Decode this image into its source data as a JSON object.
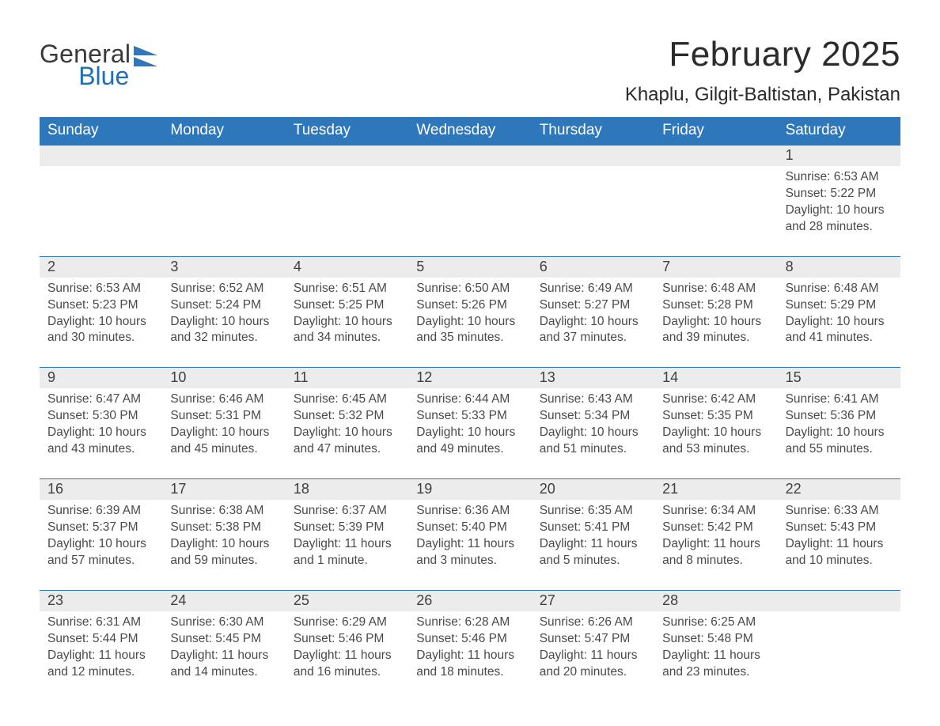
{
  "colors": {
    "accent": "#2f77bb",
    "gray_band": "#ececec",
    "text": "#333333",
    "logo_blue": "#1f6fb2",
    "background": "#ffffff"
  },
  "logo": {
    "line1": "General",
    "line2": "Blue"
  },
  "header": {
    "month_title": "February 2025",
    "location": "Khaplu, Gilgit-Baltistan, Pakistan"
  },
  "weekdays": [
    "Sunday",
    "Monday",
    "Tuesday",
    "Wednesday",
    "Thursday",
    "Friday",
    "Saturday"
  ],
  "weeks": [
    [
      {
        "empty": true
      },
      {
        "empty": true
      },
      {
        "empty": true
      },
      {
        "empty": true
      },
      {
        "empty": true
      },
      {
        "empty": true
      },
      {
        "day": "1",
        "sunrise": "Sunrise: 6:53 AM",
        "sunset": "Sunset: 5:22 PM",
        "daylight": "Daylight: 10 hours and 28 minutes."
      }
    ],
    [
      {
        "day": "2",
        "sunrise": "Sunrise: 6:53 AM",
        "sunset": "Sunset: 5:23 PM",
        "daylight": "Daylight: 10 hours and 30 minutes."
      },
      {
        "day": "3",
        "sunrise": "Sunrise: 6:52 AM",
        "sunset": "Sunset: 5:24 PM",
        "daylight": "Daylight: 10 hours and 32 minutes."
      },
      {
        "day": "4",
        "sunrise": "Sunrise: 6:51 AM",
        "sunset": "Sunset: 5:25 PM",
        "daylight": "Daylight: 10 hours and 34 minutes."
      },
      {
        "day": "5",
        "sunrise": "Sunrise: 6:50 AM",
        "sunset": "Sunset: 5:26 PM",
        "daylight": "Daylight: 10 hours and 35 minutes."
      },
      {
        "day": "6",
        "sunrise": "Sunrise: 6:49 AM",
        "sunset": "Sunset: 5:27 PM",
        "daylight": "Daylight: 10 hours and 37 minutes."
      },
      {
        "day": "7",
        "sunrise": "Sunrise: 6:48 AM",
        "sunset": "Sunset: 5:28 PM",
        "daylight": "Daylight: 10 hours and 39 minutes."
      },
      {
        "day": "8",
        "sunrise": "Sunrise: 6:48 AM",
        "sunset": "Sunset: 5:29 PM",
        "daylight": "Daylight: 10 hours and 41 minutes."
      }
    ],
    [
      {
        "day": "9",
        "sunrise": "Sunrise: 6:47 AM",
        "sunset": "Sunset: 5:30 PM",
        "daylight": "Daylight: 10 hours and 43 minutes."
      },
      {
        "day": "10",
        "sunrise": "Sunrise: 6:46 AM",
        "sunset": "Sunset: 5:31 PM",
        "daylight": "Daylight: 10 hours and 45 minutes."
      },
      {
        "day": "11",
        "sunrise": "Sunrise: 6:45 AM",
        "sunset": "Sunset: 5:32 PM",
        "daylight": "Daylight: 10 hours and 47 minutes."
      },
      {
        "day": "12",
        "sunrise": "Sunrise: 6:44 AM",
        "sunset": "Sunset: 5:33 PM",
        "daylight": "Daylight: 10 hours and 49 minutes."
      },
      {
        "day": "13",
        "sunrise": "Sunrise: 6:43 AM",
        "sunset": "Sunset: 5:34 PM",
        "daylight": "Daylight: 10 hours and 51 minutes."
      },
      {
        "day": "14",
        "sunrise": "Sunrise: 6:42 AM",
        "sunset": "Sunset: 5:35 PM",
        "daylight": "Daylight: 10 hours and 53 minutes."
      },
      {
        "day": "15",
        "sunrise": "Sunrise: 6:41 AM",
        "sunset": "Sunset: 5:36 PM",
        "daylight": "Daylight: 10 hours and 55 minutes."
      }
    ],
    [
      {
        "day": "16",
        "sunrise": "Sunrise: 6:39 AM",
        "sunset": "Sunset: 5:37 PM",
        "daylight": "Daylight: 10 hours and 57 minutes."
      },
      {
        "day": "17",
        "sunrise": "Sunrise: 6:38 AM",
        "sunset": "Sunset: 5:38 PM",
        "daylight": "Daylight: 10 hours and 59 minutes."
      },
      {
        "day": "18",
        "sunrise": "Sunrise: 6:37 AM",
        "sunset": "Sunset: 5:39 PM",
        "daylight": "Daylight: 11 hours and 1 minute."
      },
      {
        "day": "19",
        "sunrise": "Sunrise: 6:36 AM",
        "sunset": "Sunset: 5:40 PM",
        "daylight": "Daylight: 11 hours and 3 minutes."
      },
      {
        "day": "20",
        "sunrise": "Sunrise: 6:35 AM",
        "sunset": "Sunset: 5:41 PM",
        "daylight": "Daylight: 11 hours and 5 minutes."
      },
      {
        "day": "21",
        "sunrise": "Sunrise: 6:34 AM",
        "sunset": "Sunset: 5:42 PM",
        "daylight": "Daylight: 11 hours and 8 minutes."
      },
      {
        "day": "22",
        "sunrise": "Sunrise: 6:33 AM",
        "sunset": "Sunset: 5:43 PM",
        "daylight": "Daylight: 11 hours and 10 minutes."
      }
    ],
    [
      {
        "day": "23",
        "sunrise": "Sunrise: 6:31 AM",
        "sunset": "Sunset: 5:44 PM",
        "daylight": "Daylight: 11 hours and 12 minutes."
      },
      {
        "day": "24",
        "sunrise": "Sunrise: 6:30 AM",
        "sunset": "Sunset: 5:45 PM",
        "daylight": "Daylight: 11 hours and 14 minutes."
      },
      {
        "day": "25",
        "sunrise": "Sunrise: 6:29 AM",
        "sunset": "Sunset: 5:46 PM",
        "daylight": "Daylight: 11 hours and 16 minutes."
      },
      {
        "day": "26",
        "sunrise": "Sunrise: 6:28 AM",
        "sunset": "Sunset: 5:46 PM",
        "daylight": "Daylight: 11 hours and 18 minutes."
      },
      {
        "day": "27",
        "sunrise": "Sunrise: 6:26 AM",
        "sunset": "Sunset: 5:47 PM",
        "daylight": "Daylight: 11 hours and 20 minutes."
      },
      {
        "day": "28",
        "sunrise": "Sunrise: 6:25 AM",
        "sunset": "Sunset: 5:48 PM",
        "daylight": "Daylight: 11 hours and 23 minutes."
      },
      {
        "empty": true
      }
    ]
  ]
}
